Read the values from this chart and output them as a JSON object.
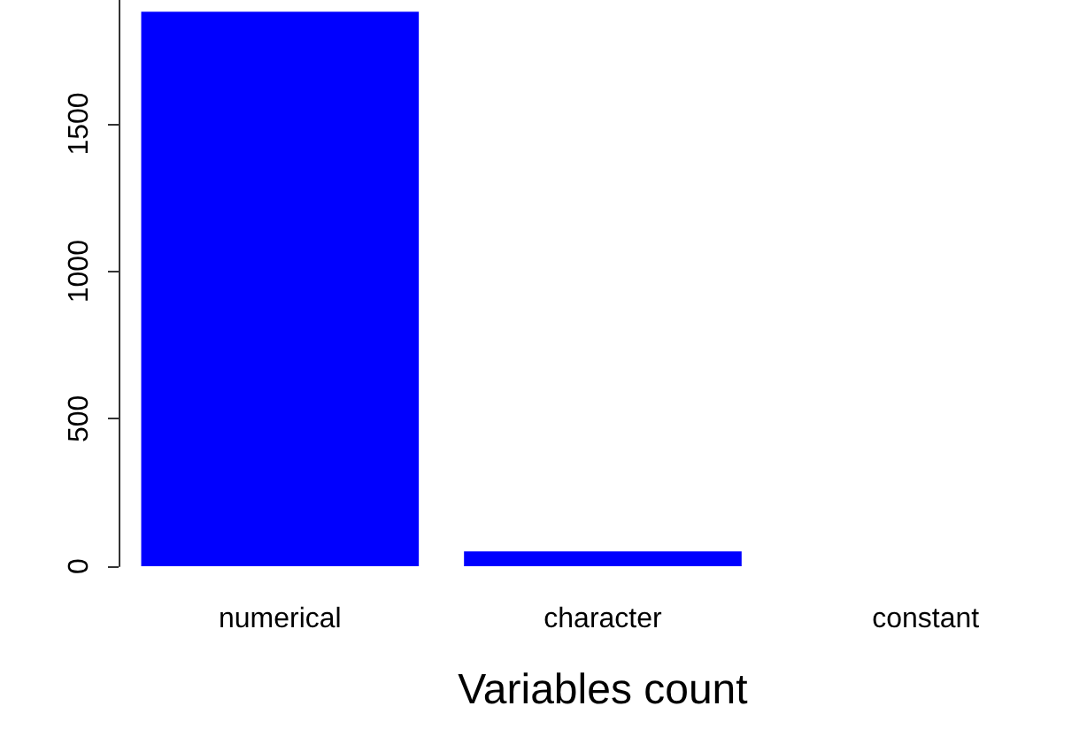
{
  "chart_data": {
    "type": "bar",
    "xlabel": "Variables count",
    "categories": [
      "numerical",
      "character",
      "constant"
    ],
    "values": [
      1880,
      50,
      0
    ],
    "color": "#0000ff",
    "ylim": [
      0,
      1920
    ],
    "yticks": [
      0,
      500,
      1000,
      1500
    ],
    "grid": false
  }
}
